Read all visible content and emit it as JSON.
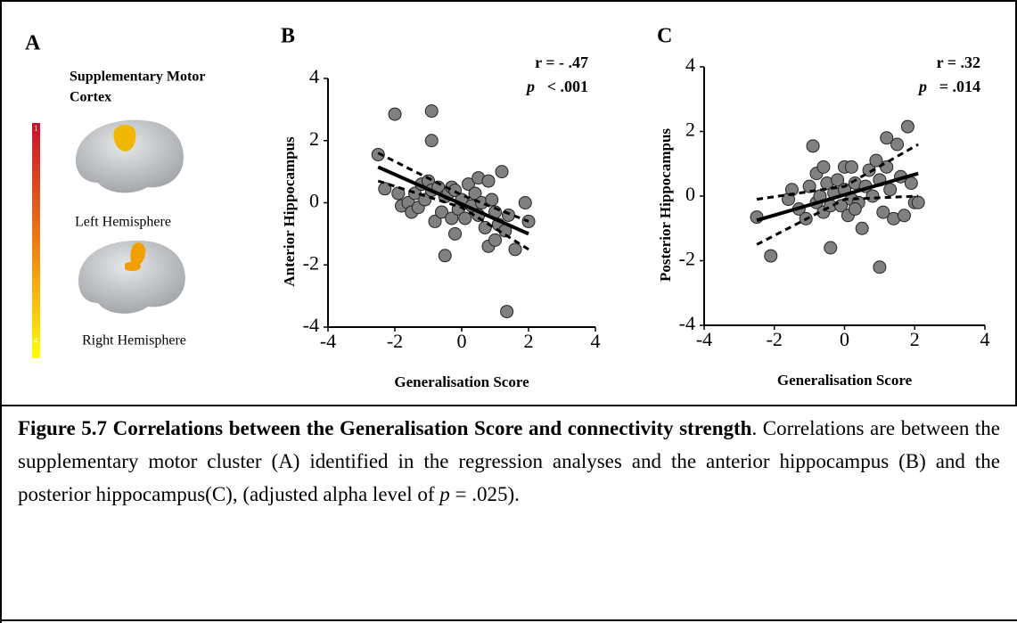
{
  "panel_a": {
    "letter": "A",
    "title_lines": [
      "Supplementary Motor",
      "Cortex"
    ],
    "left_label": "Left Hemisphere",
    "right_label": "Right Hemisphere",
    "colorbar_top": "1",
    "colorbar_bottom": "4"
  },
  "chart_data": [
    {
      "type": "scatter",
      "panel": "B",
      "x_label": "Generalisation Score",
      "y_label": "Anterior Hippocampus",
      "stat_r": "r = - .47",
      "p_symbol": "p",
      "p_text": "< .001",
      "point_color": "#808080",
      "xlim": [
        -4,
        4
      ],
      "ylim": [
        -4,
        4
      ],
      "xticks": [
        -4,
        -2,
        0,
        2,
        4
      ],
      "yticks": [
        -4,
        -2,
        0,
        2,
        4
      ],
      "x": [
        -2.5,
        -2.3,
        -2.0,
        -1.9,
        -1.8,
        -1.6,
        -1.5,
        -1.4,
        -1.3,
        -1.2,
        -1.1,
        -1.0,
        -0.9,
        -0.9,
        -0.9,
        -0.8,
        -0.7,
        -0.6,
        -0.5,
        -0.5,
        -0.4,
        -0.3,
        -0.3,
        -0.2,
        -0.2,
        -0.1,
        0.0,
        0.1,
        0.2,
        0.3,
        0.4,
        0.5,
        0.5,
        0.6,
        0.7,
        0.8,
        0.8,
        0.9,
        1.0,
        1.0,
        1.1,
        1.2,
        1.3,
        1.35,
        1.4,
        1.6,
        1.9,
        2.0
      ],
      "values": [
        1.55,
        0.45,
        2.85,
        0.3,
        -0.1,
        0.0,
        -0.3,
        0.3,
        -0.15,
        0.6,
        0.1,
        0.7,
        2.0,
        2.95,
        0.4,
        -0.6,
        0.5,
        -0.3,
        0.2,
        -1.7,
        0.3,
        0.5,
        -0.5,
        0.4,
        -1.0,
        -0.2,
        0.1,
        -0.5,
        0.6,
        -0.1,
        0.3,
        0.8,
        -0.4,
        0.0,
        -0.8,
        0.7,
        -1.4,
        0.1,
        -0.3,
        -1.2,
        -0.7,
        1.0,
        -0.9,
        -3.5,
        -0.4,
        -1.5,
        0.0,
        -0.6
      ],
      "fit": {
        "x": [
          -2.5,
          2.0
        ],
        "y": [
          1.15,
          -1.0
        ]
      },
      "ci_upper": {
        "x": [
          -2.5,
          0,
          2.0
        ],
        "y": [
          1.6,
          0.25,
          -0.6
        ]
      },
      "ci_lower": {
        "x": [
          -2.5,
          0,
          2.0
        ],
        "y": [
          0.7,
          -0.15,
          -1.5
        ]
      }
    },
    {
      "type": "scatter",
      "panel": "C",
      "x_label": "Generalisation Score",
      "y_label": "Posterior Hippocampus",
      "stat_r": "r = .32",
      "p_symbol": "p",
      "p_text": "= .014",
      "point_color": "#808080",
      "xlim": [
        -4,
        4
      ],
      "ylim": [
        -4,
        4
      ],
      "xticks": [
        -4,
        -2,
        0,
        2,
        4
      ],
      "yticks": [
        -4,
        -2,
        0,
        2,
        4
      ],
      "x": [
        -2.5,
        -2.1,
        -1.6,
        -1.5,
        -1.3,
        -1.1,
        -1.0,
        -0.9,
        -0.8,
        -0.8,
        -0.7,
        -0.6,
        -0.6,
        -0.5,
        -0.4,
        -0.4,
        -0.3,
        -0.2,
        -0.1,
        0.0,
        0.0,
        0.1,
        0.2,
        0.2,
        0.3,
        0.4,
        0.5,
        0.6,
        0.7,
        0.8,
        0.9,
        1.0,
        1.0,
        1.1,
        1.2,
        1.2,
        1.3,
        1.4,
        1.5,
        1.6,
        1.7,
        1.8,
        1.9,
        2.0,
        2.1,
        0.3
      ],
      "values": [
        -0.65,
        -1.85,
        -0.1,
        0.2,
        -0.4,
        -0.7,
        0.3,
        1.55,
        0.7,
        -0.2,
        0.0,
        0.9,
        -0.5,
        0.4,
        -0.3,
        -1.6,
        0.1,
        0.5,
        -0.3,
        0.9,
        0.2,
        -0.6,
        0.9,
        -0.1,
        0.4,
        -0.2,
        -1.0,
        0.3,
        0.8,
        0.0,
        1.1,
        0.5,
        -2.2,
        -0.5,
        1.8,
        0.9,
        0.2,
        -0.7,
        1.6,
        0.6,
        -0.6,
        2.15,
        0.4,
        -0.2,
        -0.2,
        -0.4
      ],
      "fit": {
        "x": [
          -2.5,
          2.1
        ],
        "y": [
          -0.75,
          0.7
        ]
      },
      "ci_upper": {
        "x": [
          -2.5,
          0,
          2.1
        ],
        "y": [
          -0.1,
          0.3,
          1.6
        ]
      },
      "ci_lower": {
        "x": [
          -2.5,
          0,
          2.1
        ],
        "y": [
          -1.5,
          -0.1,
          0.0
        ]
      }
    }
  ],
  "caption": {
    "bold": "Figure 5.7 Correlations between the Generalisation Score and connectivity strength",
    "text": ". Correlations are between the supplementary motor cluster (A) identified in the regression analyses and the anterior hippocampus (B) and the posterior hippocampus(C), (adjusted alpha level of ",
    "p_symbol": "p",
    "text_end": " = .025)."
  }
}
